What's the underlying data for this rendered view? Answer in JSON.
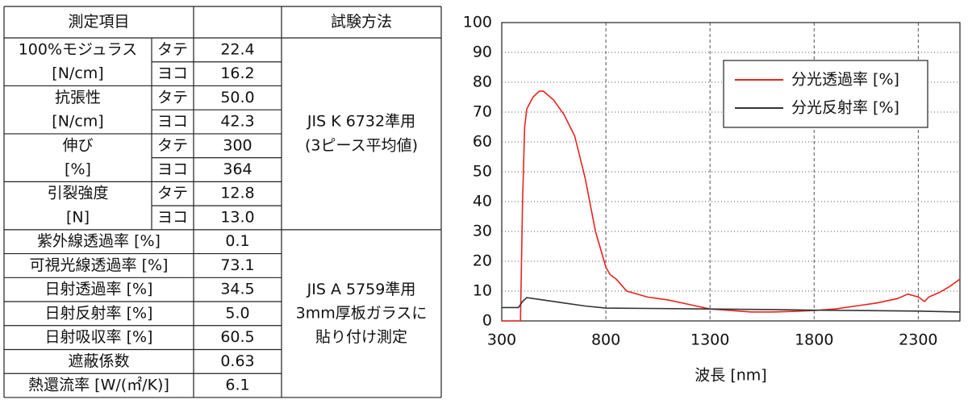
{
  "table": {
    "header": [
      "測定項目",
      "試験方法"
    ],
    "groups": [
      {
        "label": [
          "100%モジュラス",
          "[N/cm]"
        ],
        "rows": [
          [
            "タテ",
            "22.4"
          ],
          [
            "ヨコ",
            "16.2"
          ]
        ]
      },
      {
        "label": [
          "抗張性",
          "[N/cm]"
        ],
        "rows": [
          [
            "タテ",
            "50.0"
          ],
          [
            "ヨコ",
            "42.3"
          ]
        ]
      },
      {
        "label": [
          "伸び",
          "[%]"
        ],
        "rows": [
          [
            "タテ",
            "300"
          ],
          [
            "ヨコ",
            "364"
          ]
        ]
      },
      {
        "label": [
          "引裂強度",
          "[N]"
        ],
        "rows": [
          [
            "タテ",
            "12.8"
          ],
          [
            "ヨコ",
            "13.0"
          ]
        ]
      }
    ],
    "method1": [
      "JIS K 6732準用",
      "(3ピース平均値)"
    ],
    "rows2": [
      [
        "紫外線透過率 [%]",
        "0.1"
      ],
      [
        "可視光線透過率  [%]",
        "73.1"
      ],
      [
        "日射透過率  [%]",
        "34.5"
      ],
      [
        "日射反射率  [%]",
        "5.0"
      ],
      [
        "日射吸収率  [%]",
        "60.5"
      ],
      [
        "遮蔽係数",
        "0.63"
      ],
      [
        "熱還流率 [W/(㎡/K)]",
        "6.1"
      ]
    ],
    "method2": [
      "JIS A 5759準用",
      "3mm厚板ガラスに",
      "貼り付け測定"
    ]
  },
  "chart_data": {
    "type": "line",
    "xlabel": "波長 [nm]",
    "xlim": [
      300,
      2500
    ],
    "xticks": [
      300,
      800,
      1300,
      1800,
      2300
    ],
    "ylim": [
      0,
      100
    ],
    "yticks": [
      0,
      10,
      20,
      30,
      40,
      50,
      60,
      70,
      80,
      90,
      100
    ],
    "grid": true,
    "legend": "upper right",
    "series": [
      {
        "name": "分光透過率 [%]",
        "color": "#e8231f",
        "x": [
          300,
          380,
          390,
          400,
          410,
          420,
          450,
          480,
          500,
          550,
          600,
          650,
          700,
          750,
          800,
          820,
          850,
          900,
          1000,
          1100,
          1200,
          1300,
          1400,
          1500,
          1600,
          1700,
          1800,
          1900,
          2000,
          2100,
          2200,
          2250,
          2300,
          2330,
          2350,
          2400,
          2450,
          2500
        ],
        "values": [
          0,
          0,
          0,
          40,
          65,
          71,
          75,
          77,
          77,
          74,
          69,
          62,
          48,
          30,
          18,
          15.5,
          14,
          10,
          8,
          7,
          5.5,
          4,
          3.5,
          3,
          3,
          3.2,
          3.5,
          4,
          5,
          6,
          7.5,
          9,
          8,
          6.5,
          8,
          9.5,
          11.5,
          14
        ]
      },
      {
        "name": "分光反射率 [%]",
        "color": "#333333",
        "x": [
          300,
          380,
          400,
          420,
          500,
          600,
          700,
          800,
          1000,
          1300,
          1600,
          1800,
          2000,
          2300,
          2500
        ],
        "values": [
          4.5,
          4.5,
          6.5,
          7.8,
          7,
          6,
          5,
          4.3,
          4.2,
          4,
          3.8,
          3.6,
          3.5,
          3.3,
          3
        ]
      }
    ]
  }
}
